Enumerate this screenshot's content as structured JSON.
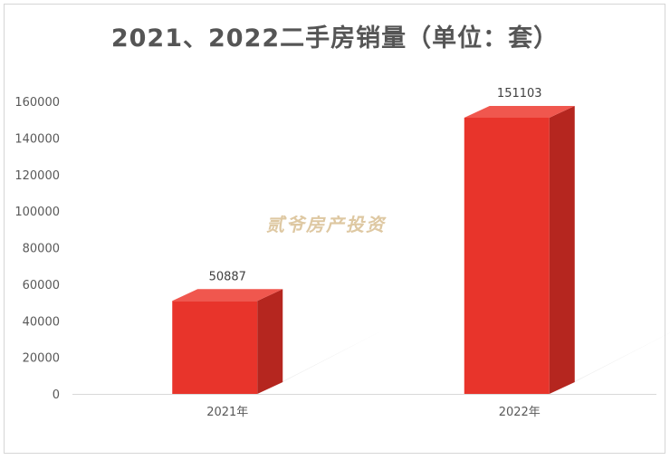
{
  "chart_data": {
    "type": "bar",
    "title": "2021、2022二手房销量（单位：套）",
    "categories": [
      "2021年",
      "2022年"
    ],
    "values": [
      50887,
      151103
    ],
    "data_labels": [
      "50887",
      "151103"
    ],
    "y_ticks": [
      "0",
      "20000",
      "40000",
      "60000",
      "80000",
      "100000",
      "120000",
      "140000",
      "160000"
    ],
    "ylim": [
      0,
      160000
    ],
    "grid": false,
    "bar_color": "#e8342b",
    "bar_side_color": "#b5261f",
    "bar_top_color": "#f0574e"
  },
  "watermark": "贰爷房产投资"
}
